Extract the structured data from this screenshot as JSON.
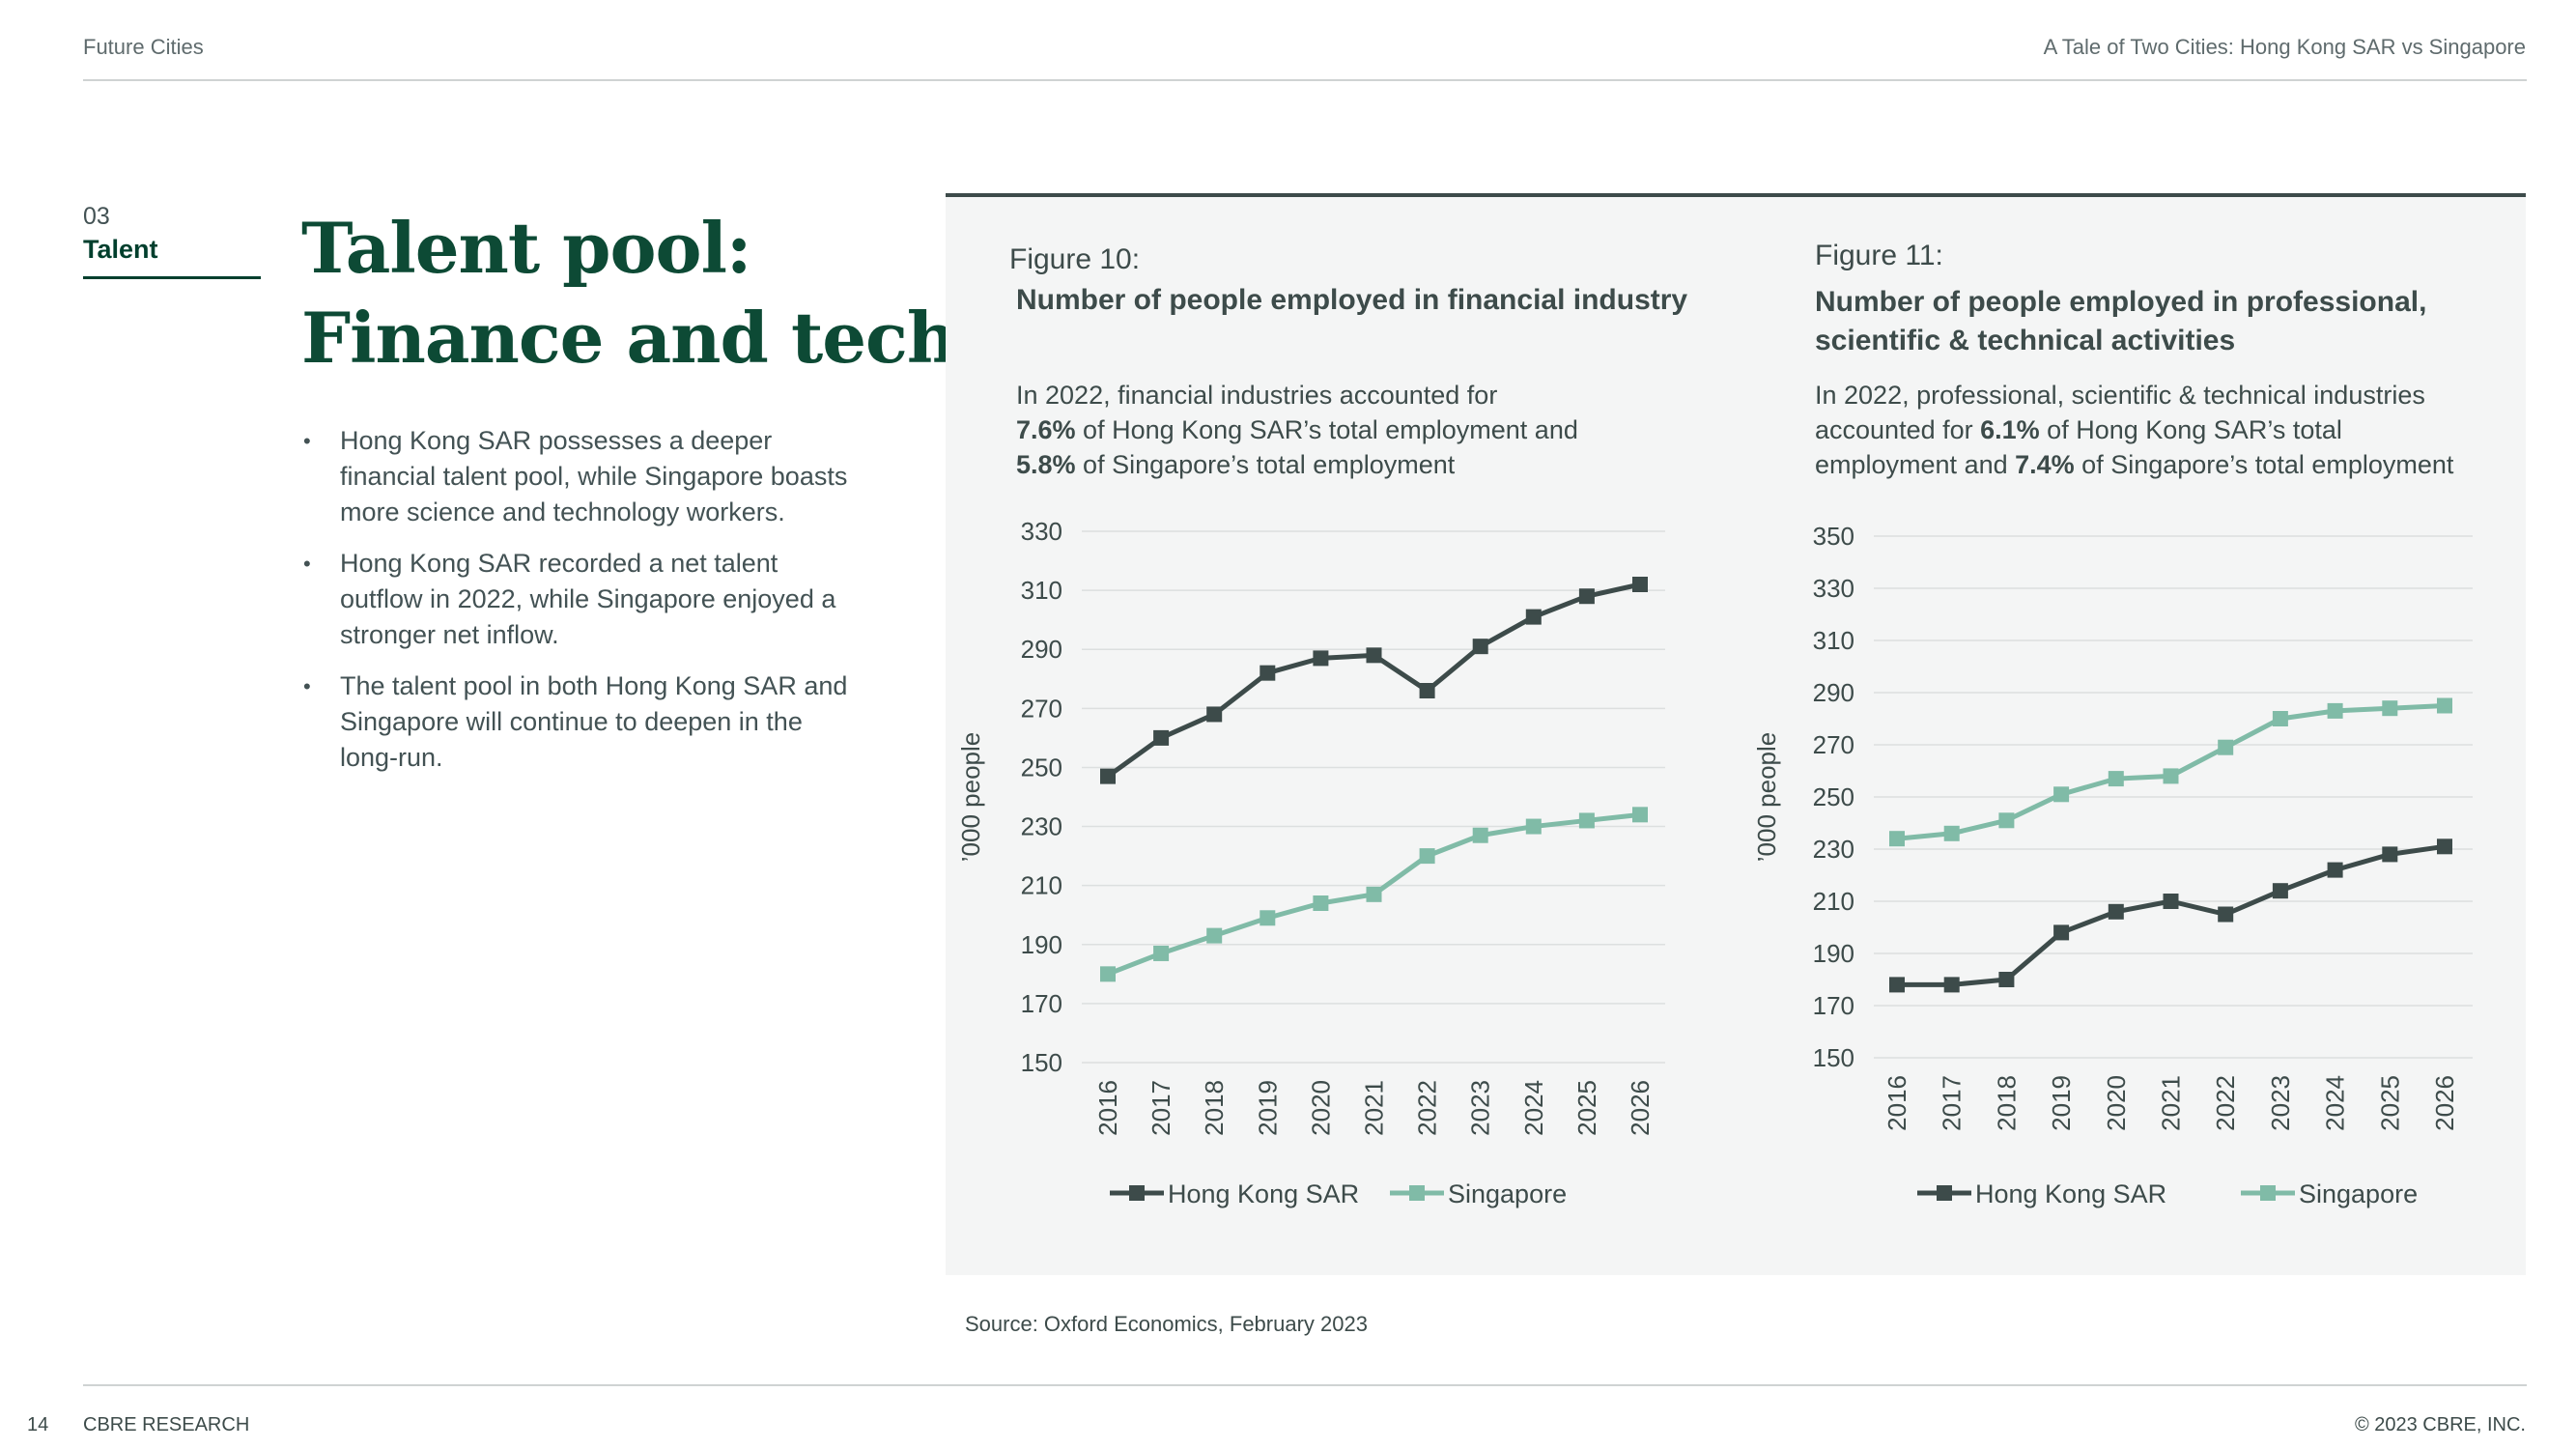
{
  "header": {
    "left": "Future Cities",
    "right": "A Tale of Two Cities: Hong Kong SAR vs Singapore"
  },
  "section": {
    "number": "03",
    "name": "Talent"
  },
  "title": {
    "line1": "Talent pool:",
    "line2": "Finance and tech"
  },
  "bullets": [
    "Hong Kong SAR possesses a deeper financial talent pool, while Singapore boasts more science and technology workers.",
    "Hong Kong SAR recorded a net talent outflow in 2022, while Singapore enjoyed a stronger net inflow.",
    "The talent pool in both Hong Kong SAR and Singapore will continue to deepen in the long-run."
  ],
  "figures": [
    {
      "label": "Figure 10:",
      "title": "Number of people employed in financial industry",
      "desc": {
        "p1": "In 2022, financial industries accounted for",
        "v1": "7.6%",
        "p2": " of Hong Kong SAR’s total employment and",
        "v2": "5.8%",
        "p3": " of Singapore’s total employment"
      }
    },
    {
      "label": "Figure 11:",
      "title_line1": "Number of people employed in professional,",
      "title_line2": "scientific & technical activities",
      "desc": {
        "p1": "In 2022, professional, scientific & technical industries",
        "p2": "accounted for ",
        "v1": "6.1%",
        "p3": " of Hong Kong SAR’s total",
        "p4": "employment and ",
        "v2": "7.4%",
        "p5": " of Singapore’s total employment"
      }
    }
  ],
  "chart_data": [
    {
      "type": "line",
      "ylabel": "’000 people",
      "ylim": [
        150,
        330
      ],
      "yticks": [
        150,
        170,
        190,
        210,
        230,
        250,
        270,
        290,
        310,
        330
      ],
      "categories": [
        "2016",
        "2017",
        "2018",
        "2019",
        "2020",
        "2021",
        "2022",
        "2023",
        "2024",
        "2025",
        "2026"
      ],
      "grid": true,
      "legend": "bottom",
      "series": [
        {
          "name": "Hong Kong SAR",
          "color": "#3d4b4a",
          "marker": "square",
          "values": [
            247,
            260,
            268,
            282,
            287,
            288,
            276,
            291,
            301,
            308,
            312
          ]
        },
        {
          "name": "Singapore",
          "color": "#80bba7",
          "marker": "square",
          "values": [
            180,
            187,
            193,
            199,
            204,
            207,
            220,
            227,
            230,
            232,
            234
          ]
        }
      ]
    },
    {
      "type": "line",
      "ylabel": "’000 people",
      "ylim": [
        150,
        350
      ],
      "yticks": [
        150,
        170,
        190,
        210,
        230,
        250,
        270,
        290,
        310,
        330,
        350
      ],
      "categories": [
        "2016",
        "2017",
        "2018",
        "2019",
        "2020",
        "2021",
        "2022",
        "2023",
        "2024",
        "2025",
        "2026"
      ],
      "grid": true,
      "legend": "bottom",
      "series": [
        {
          "name": "Hong Kong SAR",
          "color": "#3d4b4a",
          "marker": "square",
          "values": [
            178,
            178,
            180,
            198,
            206,
            210,
            205,
            214,
            222,
            228,
            231
          ]
        },
        {
          "name": "Singapore",
          "color": "#80bba7",
          "marker": "square",
          "values": [
            234,
            236,
            241,
            251,
            257,
            258,
            269,
            280,
            283,
            284,
            285
          ]
        }
      ]
    }
  ],
  "source": "Source: Oxford Economics, February 2023",
  "footer": {
    "page": "14",
    "org": "CBRE RESEARCH",
    "copyright": "© 2023 CBRE, INC."
  }
}
